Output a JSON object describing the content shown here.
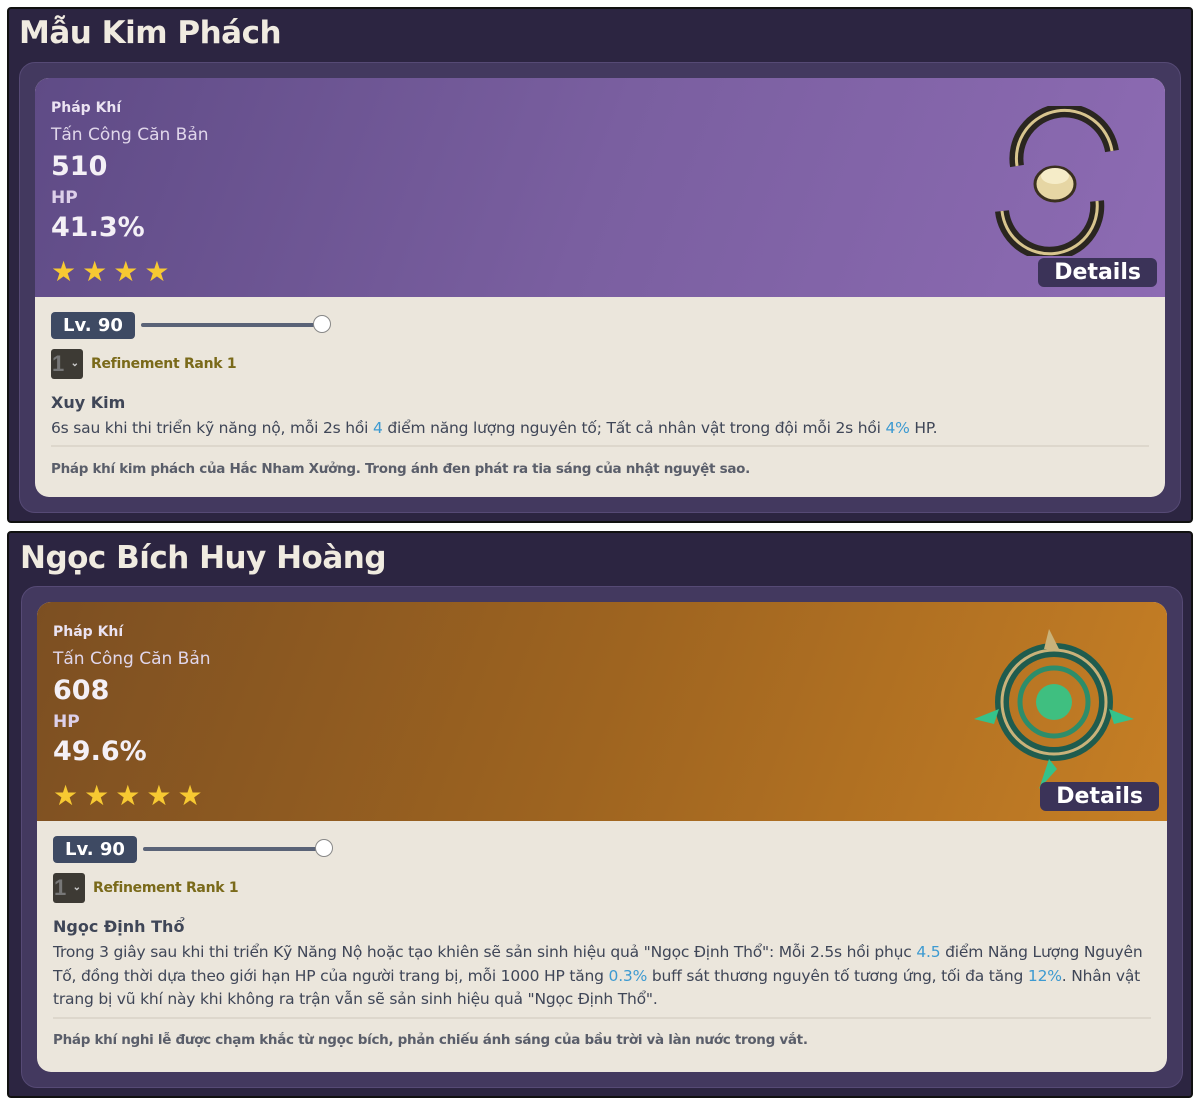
{
  "cards": [
    {
      "title": "Mẫu Kim Phách",
      "type": "Pháp Khí",
      "base_stat_label": "Tấn Công Căn Bản",
      "base_stat_value": "510",
      "sub_stat_label": "HP",
      "sub_stat_value": "41.3%",
      "rarity": 4,
      "theme_color": "#7a5fa0",
      "details_label": "Details",
      "level_label": "Lv. 90",
      "level_progress": 1.0,
      "refinement_value": "1",
      "refinement_label": "Refinement Rank 1",
      "passive_name": "Xuy Kim",
      "passive_desc": [
        {
          "t": "6s sau khi thi triển kỹ năng nộ, mỗi 2s hồi "
        },
        {
          "t": "4",
          "hl": true
        },
        {
          "t": " điểm năng lượng nguyên tố; Tất cả nhân vật trong đội mỗi 2s hồi "
        },
        {
          "t": "4%",
          "hl": true
        },
        {
          "t": " HP."
        }
      ],
      "lore": "Pháp khí kim phách của Hắc Nham Xưởng. Trong ánh đen phát ra tia sáng của nhật nguyệt sao."
    },
    {
      "title": "Ngọc Bích Huy Hoàng",
      "type": "Pháp Khí",
      "base_stat_label": "Tấn Công Căn Bản",
      "base_stat_value": "608",
      "sub_stat_label": "HP",
      "sub_stat_value": "49.6%",
      "rarity": 5,
      "theme_color": "#b07224",
      "details_label": "Details",
      "level_label": "Lv. 90",
      "level_progress": 1.0,
      "refinement_value": "1",
      "refinement_label": "Refinement Rank 1",
      "passive_name": "Ngọc Định Thổ",
      "passive_desc": [
        {
          "t": "Trong 3 giây sau khi thi triển Kỹ Năng Nộ hoặc tạo khiên sẽ sản sinh hiệu quả \"Ngọc Định Thổ\": Mỗi 2.5s hồi phục "
        },
        {
          "t": "4.5",
          "hl": true
        },
        {
          "t": " điểm Năng Lượng Nguyên Tố, đồng thời dựa theo giới hạn HP của người trang bị, mỗi 1000 HP tăng "
        },
        {
          "t": "0.3%",
          "hl": true
        },
        {
          "t": " buff sát thương nguyên tố tương ứng, tối đa tăng "
        },
        {
          "t": "12%",
          "hl": true
        },
        {
          "t": ". Nhân vật trang bị vũ khí này khi không ra trận vẫn sẽ sản sinh hiệu quả \"Ngọc Định Thổ\"."
        }
      ],
      "lore": "Pháp khí nghi lễ được chạm khắc từ ngọc bích, phản chiếu ánh sáng của bầu trời và làn nước trong vắt."
    }
  ]
}
